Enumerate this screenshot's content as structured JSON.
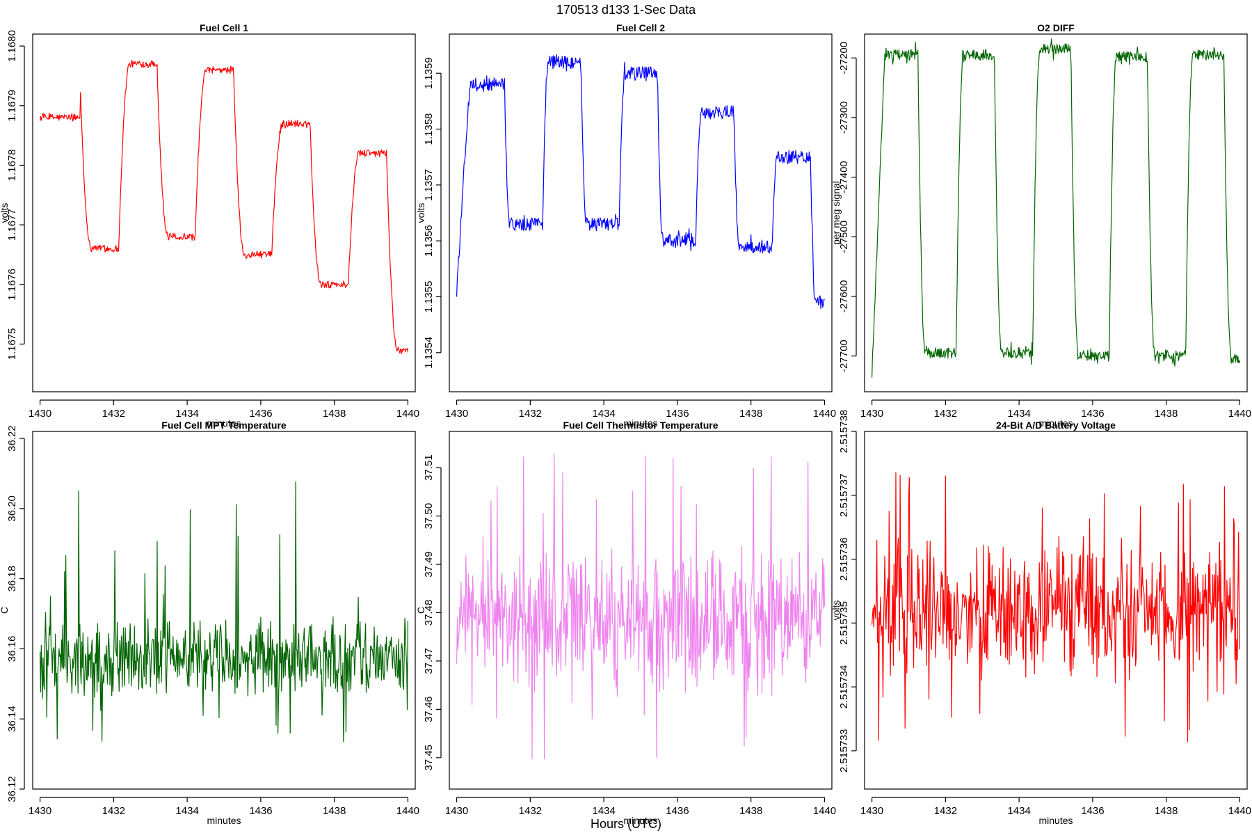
{
  "figure": {
    "title": "170513   d133   1-Sec Data",
    "bottom_label": "Hours (UTC)"
  },
  "chart_data": [
    {
      "type": "line",
      "title": "Fuel Cell 1",
      "xlabel": "minutes",
      "ylabel": "volts",
      "color": "#ff0000",
      "xlim": [
        1429.8,
        1440.2
      ],
      "ylim": [
        1.16742,
        1.16802
      ],
      "xticks": [
        1430,
        1432,
        1434,
        1436,
        1438,
        1440
      ],
      "yticks": [
        1.1675,
        1.1676,
        1.1677,
        1.1678,
        1.1679,
        1.168
      ],
      "ytick_labels": [
        "1.1675",
        "1.1676",
        "1.1677",
        "1.1678",
        "1.1679",
        "1.1680"
      ],
      "generator": {
        "kind": "square",
        "period": 2.08,
        "start": 1431.1,
        "duty": 0.5,
        "transition": 0.3,
        "highs": [
          1.16792,
          1.16797,
          1.16796,
          1.16787,
          1.16782,
          1.16774
        ],
        "lows": [
          1.16766,
          1.16768,
          1.16765,
          1.1676,
          1.16749,
          1.16747
        ],
        "first_high": 1.16788,
        "noise": 6e-06,
        "spikes": 4e-06
      },
      "series": [
        {
          "name": "Fuel Cell 1",
          "points": []
        }
      ]
    },
    {
      "type": "line",
      "title": "Fuel Cell 2",
      "xlabel": "minutes",
      "ylabel": "volts",
      "color": "#0000ff",
      "xlim": [
        1429.8,
        1440.2
      ],
      "ylim": [
        1.13533,
        1.13597
      ],
      "xticks": [
        1430,
        1432,
        1434,
        1436,
        1438,
        1440
      ],
      "yticks": [
        1.1354,
        1.1355,
        1.1356,
        1.1357,
        1.1358,
        1.1359
      ],
      "ytick_labels": [
        "1.1354",
        "1.1355",
        "1.1356",
        "1.1357",
        "1.1358",
        "1.1359"
      ],
      "generator": {
        "kind": "square",
        "period": 2.08,
        "start": 1431.3,
        "duty": 0.5,
        "transition": 0.15,
        "highs": [
          1.13588,
          1.13592,
          1.1359,
          1.13583,
          1.13575,
          1.13572
        ],
        "lows": [
          1.13563,
          1.13563,
          1.1356,
          1.13559,
          1.13549,
          1.13538
        ],
        "first_low_start": 1.13551,
        "noise": 1.2e-05,
        "spikes": 1.2e-05
      },
      "series": [
        {
          "name": "Fuel Cell 2",
          "points": []
        }
      ]
    },
    {
      "type": "line",
      "title": "O2 DIFF",
      "xlabel": "minutes",
      "ylabel": "per meg signal",
      "color": "#006400",
      "xlim": [
        1429.8,
        1440.2
      ],
      "ylim": [
        -27760,
        -27160
      ],
      "xticks": [
        1430,
        1432,
        1434,
        1436,
        1438,
        1440
      ],
      "yticks": [
        -27700,
        -27600,
        -27500,
        -27400,
        -27300,
        -27200
      ],
      "ytick_labels": [
        "-27700",
        "-27600",
        "-27500",
        "-27400",
        "-27300",
        "-27200"
      ],
      "generator": {
        "kind": "square",
        "period": 2.08,
        "start": 1431.25,
        "duty": 0.5,
        "transition": 0.2,
        "highs": [
          -27195,
          -27195,
          -27185,
          -27198,
          -27195,
          -27198
        ],
        "lows": [
          -27695,
          -27695,
          -27700,
          -27700,
          -27705,
          -27705
        ],
        "first_low_start": -27730,
        "noise": 9,
        "spikes": 14
      },
      "series": [
        {
          "name": "O2 DIFF",
          "points": []
        }
      ]
    },
    {
      "type": "line",
      "title": "Fuel Cell MPT Temperature",
      "xlabel": "minutes",
      "ylabel": "C",
      "color": "#006400",
      "xlim": [
        1429.8,
        1440.2
      ],
      "ylim": [
        36.12,
        36.222
      ],
      "xticks": [
        1430,
        1432,
        1434,
        1436,
        1438,
        1440
      ],
      "yticks": [
        36.12,
        36.14,
        36.16,
        36.18,
        36.2,
        36.22
      ],
      "ytick_labels": [
        "36.12",
        "36.14",
        "36.16",
        "36.18",
        "36.20",
        "36.22"
      ],
      "generator": {
        "kind": "noise",
        "mean": 36.158,
        "amp": 0.009,
        "spike_up": 0.05,
        "spike_down": 0.025,
        "min": 36.122,
        "max": 36.219
      },
      "series": [
        {
          "name": "Fuel Cell MPT Temperature",
          "points": []
        }
      ]
    },
    {
      "type": "line",
      "title": "Fuel Cell Thermistor Temperature",
      "xlabel": "minutes",
      "ylabel": "C",
      "color": "#ee82ee",
      "xlim": [
        1429.8,
        1440.2
      ],
      "ylim": [
        37.4435,
        37.5175
      ],
      "xticks": [
        1430,
        1432,
        1434,
        1436,
        1438,
        1440
      ],
      "yticks": [
        37.45,
        37.46,
        37.47,
        37.48,
        37.49,
        37.5,
        37.51
      ],
      "ytick_labels": [
        "37.45",
        "37.46",
        "37.47",
        "37.48",
        "37.49",
        "37.50",
        "37.51"
      ],
      "generator": {
        "kind": "noise",
        "mean": 37.478,
        "amp": 0.011,
        "spike_up": 0.035,
        "spike_down": 0.03,
        "min": 37.445,
        "max": 37.515
      },
      "series": [
        {
          "name": "Fuel Cell Thermistor Temperature",
          "points": []
        }
      ]
    },
    {
      "type": "line",
      "title": "24-Bit A/D Battery Voltage",
      "xlabel": "minutes",
      "ylabel": "volts",
      "color": "#ff0000",
      "xlim": [
        1429.8,
        1440.2
      ],
      "ylim": [
        2.5157324,
        2.515738
      ],
      "xticks": [
        1430,
        1432,
        1434,
        1436,
        1438,
        1440
      ],
      "yticks": [
        2.515733,
        2.515734,
        2.515735,
        2.515736,
        2.515737,
        2.515738
      ],
      "ytick_labels": [
        "2.515733",
        "2.515734",
        "2.515735",
        "2.515736",
        "2.515737",
        "2.515738"
      ],
      "generator": {
        "kind": "noise",
        "mean": 2.5157352,
        "amp": 8e-07,
        "spike_up": 2.2e-06,
        "spike_down": 2.2e-06,
        "min": 2.5157325,
        "max": 2.5157378
      },
      "series": [
        {
          "name": "24-Bit A/D Battery Voltage",
          "points": []
        }
      ]
    }
  ]
}
